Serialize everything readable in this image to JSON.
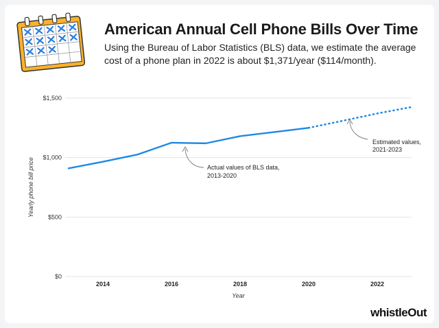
{
  "header": {
    "title": "American Annual Cell Phone Bills Over Time",
    "subtitle": "Using the Bureau of Labor Statistics (BLS) data, we estimate the average cost of a phone plan in 2022 is about $1,371/year ($114/month)."
  },
  "brand": {
    "name_part1": "whistle",
    "name_part2": "Out"
  },
  "icons": {
    "calendar": "calendar-icon"
  },
  "colors": {
    "accent": "#1e88e5",
    "calendar_yellow": "#f9b22b",
    "check_blue": "#2a7de1"
  },
  "chart_data": {
    "type": "line",
    "title": "American Annual Cell Phone Bills Over Time",
    "xlabel": "Year",
    "ylabel": "Yearly phone bill price",
    "xlim": [
      2012.9,
      2023.0
    ],
    "ylim": [
      0,
      1500
    ],
    "xticks": [
      2014,
      2016,
      2018,
      2020,
      2022
    ],
    "xtick_labels": [
      "2014",
      "2016",
      "2018",
      "2020",
      "2022"
    ],
    "yticks": [
      0,
      500,
      1000,
      1500
    ],
    "ytick_labels": [
      "$0",
      "$500",
      "$1,000",
      "$1,500"
    ],
    "grid": "horizontal",
    "series": [
      {
        "name": "Actual values of BLS data, 2013-2020",
        "style": "solid",
        "x": [
          2013,
          2014,
          2015,
          2016,
          2017,
          2018,
          2019,
          2020
        ],
        "values": [
          910,
          965,
          1025,
          1125,
          1120,
          1180,
          1215,
          1250
        ]
      },
      {
        "name": "Estimated values, 2021-2023",
        "style": "dotted",
        "x": [
          2020,
          2021,
          2022,
          2023
        ],
        "values": [
          1250,
          1310,
          1371,
          1425
        ]
      }
    ],
    "annotations": [
      {
        "line1": "Actual values of BLS data,",
        "line2": "2013-2020"
      },
      {
        "line1": "Estimated values,",
        "line2": "2021-2023"
      }
    ]
  }
}
